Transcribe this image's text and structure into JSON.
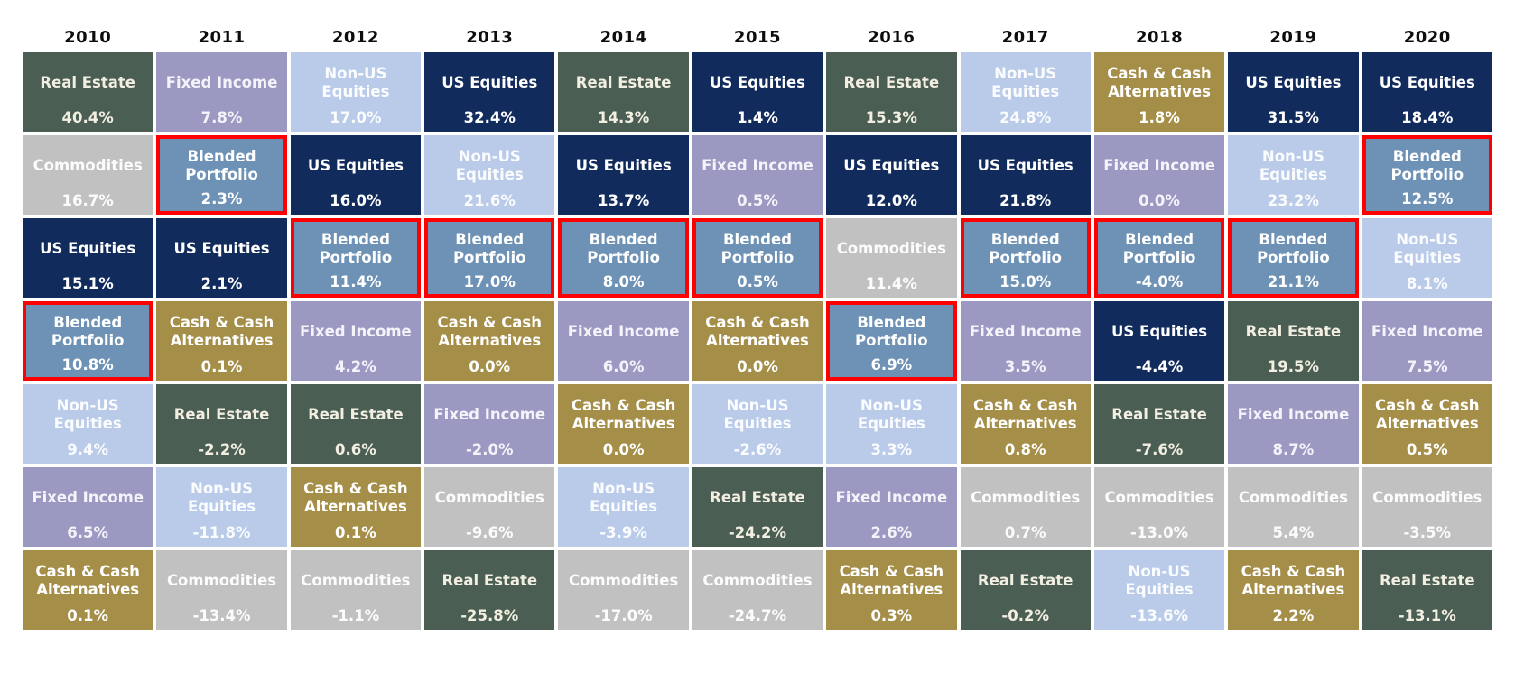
{
  "highlight_border_color": "#fe0000",
  "asset_classes": {
    "real-estate": {
      "label": "Real Estate",
      "color": "#4a5e53",
      "text_color": "#f2eee1"
    },
    "fixed-income": {
      "label": "Fixed Income",
      "color": "#9b99c2",
      "text_color": "#f4f3fa"
    },
    "non-us": {
      "label": "Non-US Equities",
      "color": "#b9cbe9",
      "text_color": "#fbfcfe"
    },
    "us-equities": {
      "label": "US Equities",
      "color": "#112b5c",
      "text_color": "#ffffff"
    },
    "commodities": {
      "label": "Commodities",
      "color": "#c2c1c1",
      "text_color": "#fcfcfc"
    },
    "blended": {
      "label": "Blended Portfolio",
      "color": "#6d92b5",
      "text_color": "#ffffff"
    },
    "cash": {
      "label": "Cash & Cash Alternatives",
      "color": "#a58e48",
      "text_color": "#ffffff"
    }
  },
  "columns": [
    {
      "year": "2010",
      "cells": [
        {
          "asset": "real-estate",
          "value": "40.4%",
          "highlighted": false
        },
        {
          "asset": "commodities",
          "value": "16.7%",
          "highlighted": false
        },
        {
          "asset": "us-equities",
          "value": "15.1%",
          "highlighted": false
        },
        {
          "asset": "blended",
          "value": "10.8%",
          "highlighted": true
        },
        {
          "asset": "non-us",
          "value": "9.4%",
          "highlighted": false
        },
        {
          "asset": "fixed-income",
          "value": "6.5%",
          "highlighted": false
        },
        {
          "asset": "cash",
          "value": "0.1%",
          "highlighted": false
        }
      ]
    },
    {
      "year": "2011",
      "cells": [
        {
          "asset": "fixed-income",
          "value": "7.8%",
          "highlighted": false
        },
        {
          "asset": "blended",
          "value": "2.3%",
          "highlighted": true
        },
        {
          "asset": "us-equities",
          "value": "2.1%",
          "highlighted": false
        },
        {
          "asset": "cash",
          "value": "0.1%",
          "highlighted": false
        },
        {
          "asset": "real-estate",
          "value": "-2.2%",
          "highlighted": false
        },
        {
          "asset": "non-us",
          "value": "-11.8%",
          "highlighted": false
        },
        {
          "asset": "commodities",
          "value": "-13.4%",
          "highlighted": false
        }
      ]
    },
    {
      "year": "2012",
      "cells": [
        {
          "asset": "non-us",
          "value": "17.0%",
          "highlighted": false
        },
        {
          "asset": "us-equities",
          "value": "16.0%",
          "highlighted": false
        },
        {
          "asset": "blended",
          "value": "11.4%",
          "highlighted": true
        },
        {
          "asset": "fixed-income",
          "value": "4.2%",
          "highlighted": false
        },
        {
          "asset": "real-estate",
          "value": "0.6%",
          "highlighted": false
        },
        {
          "asset": "cash",
          "value": "0.1%",
          "highlighted": false
        },
        {
          "asset": "commodities",
          "value": "-1.1%",
          "highlighted": false
        }
      ]
    },
    {
      "year": "2013",
      "cells": [
        {
          "asset": "us-equities",
          "value": "32.4%",
          "highlighted": false
        },
        {
          "asset": "non-us",
          "value": "21.6%",
          "highlighted": false
        },
        {
          "asset": "blended",
          "value": "17.0%",
          "highlighted": true
        },
        {
          "asset": "cash",
          "value": "0.0%",
          "highlighted": false
        },
        {
          "asset": "fixed-income",
          "value": "-2.0%",
          "highlighted": false
        },
        {
          "asset": "commodities",
          "value": "-9.6%",
          "highlighted": false
        },
        {
          "asset": "real-estate",
          "value": "-25.8%",
          "highlighted": false
        }
      ]
    },
    {
      "year": "2014",
      "cells": [
        {
          "asset": "real-estate",
          "value": "14.3%",
          "highlighted": false
        },
        {
          "asset": "us-equities",
          "value": "13.7%",
          "highlighted": false
        },
        {
          "asset": "blended",
          "value": "8.0%",
          "highlighted": true
        },
        {
          "asset": "fixed-income",
          "value": "6.0%",
          "highlighted": false
        },
        {
          "asset": "cash",
          "value": "0.0%",
          "highlighted": false
        },
        {
          "asset": "non-us",
          "value": "-3.9%",
          "highlighted": false
        },
        {
          "asset": "commodities",
          "value": "-17.0%",
          "highlighted": false
        }
      ]
    },
    {
      "year": "2015",
      "cells": [
        {
          "asset": "us-equities",
          "value": "1.4%",
          "highlighted": false
        },
        {
          "asset": "fixed-income",
          "value": "0.5%",
          "highlighted": false
        },
        {
          "asset": "blended",
          "value": "0.5%",
          "highlighted": true
        },
        {
          "asset": "cash",
          "value": "0.0%",
          "highlighted": false
        },
        {
          "asset": "non-us",
          "value": "-2.6%",
          "highlighted": false
        },
        {
          "asset": "real-estate",
          "value": "-24.2%",
          "highlighted": false
        },
        {
          "asset": "commodities",
          "value": "-24.7%",
          "highlighted": false
        }
      ]
    },
    {
      "year": "2016",
      "cells": [
        {
          "asset": "real-estate",
          "value": "15.3%",
          "highlighted": false
        },
        {
          "asset": "us-equities",
          "value": "12.0%",
          "highlighted": false
        },
        {
          "asset": "commodities",
          "value": "11.4%",
          "highlighted": false
        },
        {
          "asset": "blended",
          "value": "6.9%",
          "highlighted": true
        },
        {
          "asset": "non-us",
          "value": "3.3%",
          "highlighted": false
        },
        {
          "asset": "fixed-income",
          "value": "2.6%",
          "highlighted": false
        },
        {
          "asset": "cash",
          "value": "0.3%",
          "highlighted": false
        }
      ]
    },
    {
      "year": "2017",
      "cells": [
        {
          "asset": "non-us",
          "value": "24.8%",
          "highlighted": false
        },
        {
          "asset": "us-equities",
          "value": "21.8%",
          "highlighted": false
        },
        {
          "asset": "blended",
          "value": "15.0%",
          "highlighted": true
        },
        {
          "asset": "fixed-income",
          "value": "3.5%",
          "highlighted": false
        },
        {
          "asset": "cash",
          "value": "0.8%",
          "highlighted": false
        },
        {
          "asset": "commodities",
          "value": "0.7%",
          "highlighted": false
        },
        {
          "asset": "real-estate",
          "value": "-0.2%",
          "highlighted": false
        }
      ]
    },
    {
      "year": "2018",
      "cells": [
        {
          "asset": "cash",
          "value": "1.8%",
          "highlighted": false
        },
        {
          "asset": "fixed-income",
          "value": "0.0%",
          "highlighted": false
        },
        {
          "asset": "blended",
          "value": "-4.0%",
          "highlighted": true
        },
        {
          "asset": "us-equities",
          "value": "-4.4%",
          "highlighted": false
        },
        {
          "asset": "real-estate",
          "value": "-7.6%",
          "highlighted": false
        },
        {
          "asset": "commodities",
          "value": "-13.0%",
          "highlighted": false
        },
        {
          "asset": "non-us",
          "value": "-13.6%",
          "highlighted": false
        }
      ]
    },
    {
      "year": "2019",
      "cells": [
        {
          "asset": "us-equities",
          "value": "31.5%",
          "highlighted": false
        },
        {
          "asset": "non-us",
          "value": "23.2%",
          "highlighted": false
        },
        {
          "asset": "blended",
          "value": "21.1%",
          "highlighted": true
        },
        {
          "asset": "real-estate",
          "value": "19.5%",
          "highlighted": false
        },
        {
          "asset": "fixed-income",
          "value": "8.7%",
          "highlighted": false
        },
        {
          "asset": "commodities",
          "value": "5.4%",
          "highlighted": false
        },
        {
          "asset": "cash",
          "value": "2.2%",
          "highlighted": false
        }
      ]
    },
    {
      "year": "2020",
      "cells": [
        {
          "asset": "us-equities",
          "value": "18.4%",
          "highlighted": false
        },
        {
          "asset": "blended",
          "value": "12.5%",
          "highlighted": true
        },
        {
          "asset": "non-us",
          "value": "8.1%",
          "highlighted": false
        },
        {
          "asset": "fixed-income",
          "value": "7.5%",
          "highlighted": false
        },
        {
          "asset": "cash",
          "value": "0.5%",
          "highlighted": false
        },
        {
          "asset": "commodities",
          "value": "-3.5%",
          "highlighted": false
        },
        {
          "asset": "real-estate",
          "value": "-13.1%",
          "highlighted": false
        }
      ]
    }
  ],
  "chart_data": {
    "type": "table",
    "subtype": "asset-class-returns-quilt",
    "categories": [
      "2010",
      "2011",
      "2012",
      "2013",
      "2014",
      "2015",
      "2016",
      "2017",
      "2018",
      "2019",
      "2020"
    ],
    "value_unit": "percent",
    "series": [
      {
        "name": "Real Estate",
        "color": "#4a5e53",
        "values": [
          40.4,
          -2.2,
          0.6,
          -25.8,
          14.3,
          -24.2,
          15.3,
          -0.2,
          -7.6,
          19.5,
          -13.1
        ]
      },
      {
        "name": "Fixed Income",
        "color": "#9b99c2",
        "values": [
          6.5,
          7.8,
          4.2,
          -2.0,
          6.0,
          0.5,
          2.6,
          3.5,
          0.0,
          8.7,
          7.5
        ]
      },
      {
        "name": "Non-US Equities",
        "color": "#b9cbe9",
        "values": [
          9.4,
          -11.8,
          17.0,
          21.6,
          -3.9,
          -2.6,
          3.3,
          24.8,
          -13.6,
          23.2,
          8.1
        ]
      },
      {
        "name": "US Equities",
        "color": "#112b5c",
        "values": [
          15.1,
          2.1,
          16.0,
          32.4,
          13.7,
          1.4,
          12.0,
          21.8,
          -4.4,
          31.5,
          18.4
        ]
      },
      {
        "name": "Commodities",
        "color": "#c2c1c1",
        "values": [
          16.7,
          -13.4,
          -1.1,
          -9.6,
          -17.0,
          -24.7,
          11.4,
          0.7,
          -13.0,
          5.4,
          -3.5
        ]
      },
      {
        "name": "Blended Portfolio",
        "color": "#6d92b5",
        "values": [
          10.8,
          2.3,
          11.4,
          17.0,
          8.0,
          0.5,
          6.9,
          15.0,
          -4.0,
          21.1,
          12.5
        ]
      },
      {
        "name": "Cash & Cash Alternatives",
        "color": "#a58e48",
        "values": [
          0.1,
          0.1,
          0.1,
          0.0,
          0.0,
          0.0,
          0.3,
          0.8,
          1.8,
          2.2,
          0.5
        ]
      }
    ],
    "layout": {
      "columns_ranked_descending_per_year": true,
      "highlighted_series": "Blended Portfolio",
      "highlight_border_color": "#fe0000",
      "legend": "none",
      "title": ""
    }
  }
}
